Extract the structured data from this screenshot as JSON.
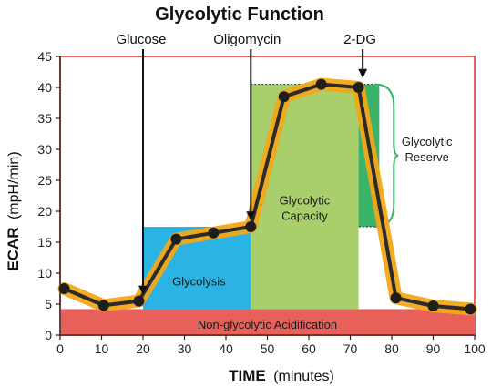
{
  "chart_data": {
    "type": "line",
    "title": "Glycolytic Function",
    "xlabel": {
      "bold": "TIME",
      "unit": "(minutes)"
    },
    "ylabel": {
      "bold": "ECAR",
      "unit": "(mpH/min)"
    },
    "xlim": [
      0,
      100
    ],
    "ylim": [
      0,
      45
    ],
    "xticks": [
      0,
      10,
      20,
      30,
      40,
      50,
      60,
      70,
      80,
      90,
      100
    ],
    "yticks": [
      0,
      5,
      10,
      15,
      20,
      25,
      30,
      35,
      40,
      45
    ],
    "grid": false,
    "series": [
      {
        "values_x": [
          1,
          10.5,
          19,
          28,
          37,
          46,
          54,
          63,
          72,
          81,
          90,
          99
        ],
        "values_y": [
          7.5,
          4.8,
          5.5,
          15.5,
          16.5,
          17.5,
          38.5,
          40.5,
          40.0,
          6.0,
          4.7,
          4.2
        ],
        "color": "#2b2b2b",
        "band_color": "#f2a817"
      }
    ],
    "injections": [
      {
        "label": "Glucose",
        "x": 20
      },
      {
        "label": "Oligomycin",
        "x": 46
      },
      {
        "label": "2-DG",
        "x": 73
      }
    ],
    "regions": [
      {
        "label": "Non-glycolytic Acidification",
        "x0": 0,
        "x1": 100,
        "y0": 0,
        "y1": 4.2,
        "color": "#e8605a"
      },
      {
        "label": "Glycolysis",
        "x0": 20,
        "x1": 46,
        "y0": 4.2,
        "y1": 17.5,
        "color": "#2bb3e6"
      },
      {
        "label": "Glycolytic\nCapacity",
        "x0": 46,
        "x1": 72,
        "y0": 4.2,
        "y1": 40.5,
        "color": "#a8cf6b"
      },
      {
        "label": "Glycolytic\nReserve",
        "x0": 72,
        "x1": 77,
        "y0": 17.5,
        "y1": 40.5,
        "color": "#3bb36b"
      }
    ],
    "colors": {
      "frame": "#e8605a",
      "line": "#2b2b2b",
      "band": "#f2a817"
    }
  }
}
